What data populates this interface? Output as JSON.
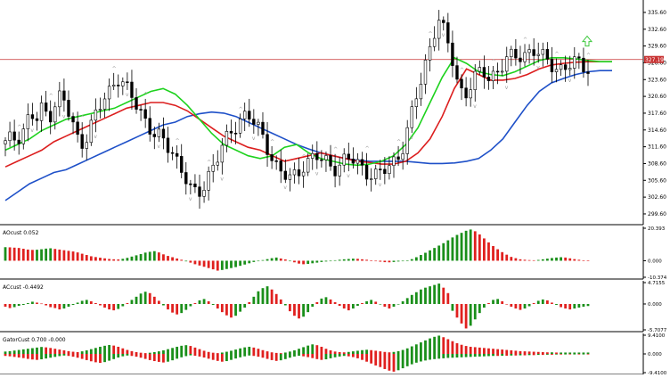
{
  "colors": {
    "background": "#ffffff",
    "bull_candle": "#ffffff",
    "bear_candle": "#000000",
    "alligator_jaw": "#1e50c8",
    "alligator_teeth": "#dc1e1e",
    "alligator_lips": "#1ed21e",
    "price_line": "#c83232",
    "hist_up": "#1a8f1a",
    "hist_down": "#e0201e",
    "fractal": "#9a9a9a",
    "signal_arrow": "#3cc83c",
    "grid": "#000000"
  },
  "chart_data": [
    {
      "type": "candlestick",
      "title": "",
      "current_price_label": "327.19",
      "ylim": [
        298.0,
        337.5
      ],
      "ytick_labels": [
        "335.60",
        "332.60",
        "329.60",
        "326.60",
        "323.60",
        "320.60",
        "317.60",
        "314.60",
        "311.60",
        "308.60",
        "305.60",
        "302.60",
        "299.60"
      ],
      "ytick_values": [
        335.6,
        332.6,
        329.6,
        326.6,
        323.6,
        320.6,
        317.6,
        314.6,
        311.6,
        308.6,
        305.6,
        302.6,
        299.6
      ],
      "ohlc_anchor_closes": [
        312.0,
        313.0,
        313.5,
        315.0,
        317.5,
        316.0,
        318.5,
        317.0,
        319.5,
        321.0,
        318.0,
        315.0,
        312.0,
        313.5,
        316.0,
        318.0,
        320.0,
        322.0,
        324.5,
        323.0,
        321.0,
        319.0,
        317.5,
        316.0,
        314.0,
        313.0,
        311.5,
        310.5,
        309.0,
        306.5,
        303.5,
        302.5,
        304.5,
        307.5,
        309.5,
        311.5,
        313.0,
        315.0,
        317.0,
        318.0,
        316.0,
        314.0,
        312.0,
        310.0,
        308.0,
        306.5,
        305.5,
        306.5,
        308.5,
        309.5,
        310.0,
        309.0,
        308.5,
        308.0,
        308.8,
        309.5,
        309.0,
        308.2,
        307.5,
        307.0,
        306.5,
        307.0,
        308.0,
        309.5,
        311.5,
        315.0,
        319.0,
        323.0,
        327.5,
        332.0,
        334.5,
        331.0,
        327.5,
        323.0,
        321.0,
        322.5,
        324.0,
        325.0,
        324.0,
        325.0,
        326.0,
        327.0,
        327.5,
        328.0,
        328.5,
        329.0,
        328.0,
        327.0,
        326.5,
        326.0,
        325.5,
        326.0,
        326.5,
        326.2,
        326.0
      ],
      "candle_count": 130,
      "alligator": {
        "jaw": [
          302.0,
          303.5,
          305.0,
          306.0,
          307.0,
          307.5,
          308.5,
          309.5,
          310.5,
          311.5,
          312.5,
          313.5,
          314.5,
          315.5,
          316.0,
          317.0,
          317.5,
          317.8,
          317.6,
          317.0,
          316.0,
          315.0,
          314.0,
          313.0,
          312.0,
          311.2,
          310.5,
          310.0,
          309.5,
          309.2,
          309.0,
          309.0,
          309.0,
          309.0,
          308.8,
          308.6,
          308.6,
          308.7,
          309.0,
          309.5,
          311.0,
          313.0,
          316.0,
          319.0,
          321.5,
          323.0,
          323.8,
          324.5,
          325.0,
          325.2,
          325.2
        ],
        "teeth": [
          308.0,
          309.0,
          310.0,
          311.0,
          312.5,
          313.5,
          314.5,
          315.5,
          316.5,
          317.5,
          318.5,
          319.0,
          319.5,
          319.5,
          319.0,
          318.0,
          316.5,
          315.0,
          313.5,
          312.5,
          311.5,
          311.0,
          310.0,
          309.0,
          309.5,
          310.0,
          310.5,
          310.0,
          309.5,
          309.0,
          308.8,
          308.5,
          308.5,
          309.0,
          310.5,
          313.0,
          317.0,
          322.0,
          325.5,
          324.5,
          323.5,
          323.5,
          323.8,
          324.5,
          325.5,
          326.2,
          326.5,
          326.7,
          326.8,
          326.8,
          326.8
        ],
        "lips": [
          311.0,
          312.0,
          313.0,
          314.5,
          315.5,
          316.5,
          317.0,
          317.5,
          318.0,
          318.5,
          319.5,
          320.5,
          321.5,
          322.0,
          321.0,
          319.0,
          316.5,
          314.0,
          312.0,
          311.0,
          310.0,
          309.5,
          310.0,
          311.5,
          312.0,
          310.5,
          309.5,
          309.0,
          308.5,
          308.3,
          308.5,
          309.0,
          310.0,
          312.0,
          315.0,
          319.5,
          324.0,
          327.5,
          326.5,
          325.0,
          324.5,
          324.3,
          325.0,
          326.0,
          327.0,
          327.5,
          327.5,
          327.3,
          327.0,
          326.8,
          326.8
        ]
      }
    },
    {
      "type": "bar",
      "title": "AOcust 0.052",
      "ytick_labels": [
        "20.393",
        "0.000",
        "-10.374"
      ],
      "ytick_values": [
        20.393,
        0.0,
        -10.374
      ],
      "ylim": [
        -10.374,
        20.393
      ],
      "values": [
        8.5,
        8.4,
        8.2,
        8.0,
        7.5,
        7.0,
        6.8,
        6.9,
        7.2,
        7.6,
        7.8,
        7.4,
        7.0,
        6.6,
        6.2,
        5.8,
        5.2,
        4.4,
        3.6,
        2.8,
        2.3,
        1.9,
        1.5,
        1.1,
        0.9,
        0.8,
        1.2,
        1.8,
        2.6,
        3.4,
        4.2,
        5.1,
        5.6,
        6.0,
        5.2,
        4.0,
        3.0,
        2.2,
        1.4,
        0.6,
        -0.4,
        -1.2,
        -2.2,
        -3.0,
        -3.8,
        -4.6,
        -5.4,
        -6.2,
        -5.8,
        -5.2,
        -4.6,
        -4.0,
        -3.2,
        -2.4,
        -1.6,
        -0.8,
        -0.2,
        0.4,
        1.0,
        1.6,
        2.0,
        1.4,
        0.8,
        -0.2,
        -1.0,
        -1.8,
        -2.2,
        -2.0,
        -1.6,
        -1.2,
        -0.8,
        -0.5,
        -0.2,
        0.3,
        0.6,
        0.9,
        1.1,
        1.3,
        1.2,
        0.9,
        0.6,
        0.2,
        -0.2,
        -0.6,
        -0.9,
        -1.0,
        -0.8,
        -0.5,
        -0.2,
        0.2,
        1.0,
        2.2,
        3.6,
        5.0,
        6.5,
        8.0,
        9.5,
        11.0,
        12.8,
        14.6,
        16.2,
        17.5,
        18.8,
        19.6,
        18.5,
        16.5,
        14.0,
        11.5,
        9.2,
        7.2,
        5.4,
        3.8,
        2.4,
        1.6,
        0.9,
        0.6,
        0.4,
        0.3,
        0.5,
        0.9,
        1.3,
        1.7,
        2.0,
        2.2,
        2.0,
        1.5,
        1.0,
        0.6,
        0.2,
        0.05
      ]
    },
    {
      "type": "bar",
      "title": "ACcust -0.4492",
      "ytick_labels": [
        "4.7155",
        "0.000",
        "-5.7077"
      ],
      "ytick_values": [
        4.7155,
        0.0,
        -5.7077
      ],
      "ylim": [
        -5.7077,
        4.7155
      ],
      "values": [
        -0.6,
        -0.9,
        -0.7,
        -0.4,
        -0.2,
        0.2,
        0.5,
        0.3,
        0.1,
        -0.3,
        -0.7,
        -0.9,
        -1.2,
        -1.0,
        -0.6,
        -0.2,
        0.3,
        0.7,
        0.9,
        0.6,
        0.2,
        -0.3,
        -0.8,
        -1.2,
        -1.4,
        -1.1,
        -0.5,
        0.2,
        0.9,
        1.6,
        2.3,
        2.7,
        2.4,
        1.6,
        0.7,
        -0.3,
        -1.2,
        -1.9,
        -2.3,
        -2.0,
        -1.3,
        -0.5,
        0.2,
        0.8,
        1.1,
        0.6,
        -0.2,
        -1.0,
        -1.8,
        -2.5,
        -3.0,
        -2.6,
        -1.7,
        -0.8,
        0.4,
        1.6,
        2.8,
        3.5,
        3.9,
        3.2,
        2.2,
        1.0,
        -0.3,
        -1.6,
        -2.6,
        -3.2,
        -2.8,
        -1.8,
        -0.6,
        0.4,
        1.2,
        1.5,
        1.0,
        0.4,
        -0.4,
        -1.0,
        -1.4,
        -1.0,
        -0.4,
        0.2,
        0.6,
        0.9,
        0.5,
        -0.1,
        -0.6,
        -1.0,
        -0.6,
        -0.1,
        0.6,
        1.3,
        2.0,
        2.6,
        3.2,
        3.6,
        3.9,
        4.2,
        4.5,
        3.6,
        2.4,
        -1.5,
        -3.0,
        -4.3,
        -5.4,
        -4.8,
        -3.4,
        -2.0,
        -0.8,
        0.2,
        0.9,
        1.1,
        0.6,
        0.0,
        -0.6,
        -1.0,
        -1.3,
        -1.0,
        -0.5,
        0.2,
        0.7,
        1.0,
        0.8,
        0.3,
        -0.2,
        -0.7,
        -1.0,
        -1.2,
        -1.0,
        -0.8,
        -0.6,
        -0.45
      ]
    },
    {
      "type": "bar",
      "title": "GatorCust 0.700 -0.000",
      "ytick_labels": [
        "9.4100",
        "0.000",
        "-9.4100"
      ],
      "ytick_values": [
        9.41,
        0.0,
        -9.41
      ],
      "ylim": [
        -9.41,
        9.41
      ],
      "upper": [
        1.2,
        1.4,
        1.7,
        2.0,
        2.3,
        2.6,
        2.9,
        3.2,
        3.5,
        3.3,
        3.0,
        2.6,
        2.2,
        1.8,
        1.4,
        1.1,
        0.9,
        1.3,
        1.8,
        2.4,
        3.0,
        3.6,
        4.1,
        4.5,
        4.2,
        3.6,
        2.8,
        2.0,
        1.4,
        0.9,
        0.6,
        0.4,
        0.6,
        0.9,
        1.3,
        1.8,
        2.4,
        3.0,
        3.6,
        4.1,
        4.4,
        4.0,
        3.2,
        2.4,
        1.6,
        1.0,
        0.6,
        0.4,
        0.7,
        1.1,
        1.6,
        2.2,
        2.8,
        3.3,
        3.6,
        3.2,
        2.6,
        1.9,
        1.3,
        0.8,
        0.5,
        0.4,
        0.7,
        1.2,
        1.8,
        2.6,
        3.4,
        4.2,
        4.8,
        4.4,
        3.6,
        2.6,
        1.8,
        1.2,
        0.9,
        0.8,
        1.0,
        1.3,
        1.6,
        1.9,
        2.1,
        1.9,
        1.6,
        1.3,
        1.0,
        0.8,
        1.0,
        1.4,
        2.0,
        2.8,
        3.8,
        4.8,
        5.8,
        6.8,
        7.8,
        8.6,
        9.2,
        8.4,
        7.4,
        6.4,
        5.4,
        4.6,
        4.0,
        3.6,
        3.4,
        3.2,
        3.0,
        2.8,
        2.6,
        2.4,
        2.2,
        2.0,
        1.8,
        1.6,
        1.4,
        1.3,
        1.2,
        1.1,
        1.0,
        0.9,
        0.8,
        0.8,
        0.7,
        0.7,
        0.7,
        0.7,
        0.7,
        0.7,
        0.7,
        0.7
      ],
      "lower": [
        -1.0,
        -1.2,
        -1.5,
        -1.8,
        -2.1,
        -2.5,
        -2.8,
        -3.0,
        -2.7,
        -2.3,
        -1.9,
        -1.5,
        -1.1,
        -0.8,
        -1.0,
        -1.4,
        -1.9,
        -2.5,
        -3.1,
        -3.7,
        -4.2,
        -4.5,
        -4.1,
        -3.4,
        -2.6,
        -1.8,
        -1.2,
        -0.8,
        -1.0,
        -1.4,
        -1.9,
        -2.5,
        -3.1,
        -3.6,
        -4.0,
        -4.3,
        -3.9,
        -3.2,
        -2.4,
        -1.7,
        -1.1,
        -0.7,
        -0.9,
        -1.3,
        -1.8,
        -2.4,
        -3.0,
        -3.5,
        -3.9,
        -3.6,
        -3.0,
        -2.3,
        -1.7,
        -1.2,
        -0.8,
        -1.0,
        -1.4,
        -1.9,
        -2.5,
        -3.1,
        -3.5,
        -3.2,
        -2.6,
        -1.9,
        -1.3,
        -0.9,
        -1.2,
        -1.6,
        -2.1,
        -2.6,
        -3.0,
        -2.7,
        -2.2,
        -1.7,
        -1.3,
        -1.0,
        -1.2,
        -1.6,
        -2.2,
        -3.0,
        -3.9,
        -4.8,
        -5.8,
        -6.6,
        -7.6,
        -8.4,
        -8.9,
        -8.2,
        -7.2,
        -6.2,
        -5.2,
        -4.4,
        -3.8,
        -3.3,
        -2.9,
        -2.6,
        -2.4,
        -2.2,
        -2.0,
        -1.9,
        -1.8,
        -1.7,
        -1.6,
        -1.5,
        -1.4,
        -1.3,
        -1.2,
        -1.1,
        -1.0,
        -1.0,
        -0.9,
        -0.9,
        -0.8,
        -0.8,
        -0.7,
        -0.7,
        -0.6,
        -0.6,
        -0.5,
        -0.5,
        -0.4,
        -0.4,
        -0.3,
        -0.3,
        -0.2,
        -0.2,
        -0.1,
        -0.1,
        -0.05,
        0.0
      ]
    }
  ]
}
